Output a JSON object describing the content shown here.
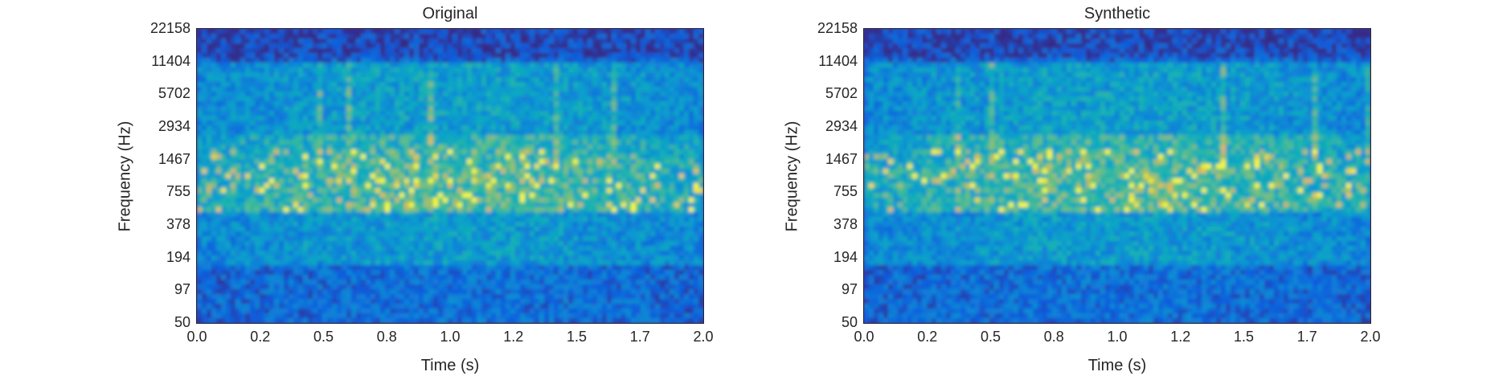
{
  "chart_data": [
    {
      "type": "heatmap",
      "title": "Original",
      "xlabel": "Time (s)",
      "ylabel": "Frequency (Hz)",
      "xticks": [
        "0.0",
        "0.2",
        "0.5",
        "0.8",
        "1.0",
        "1.2",
        "1.5",
        "1.7",
        "2.0"
      ],
      "yticks": [
        "22158",
        "11404",
        "5702",
        "2934",
        "1467",
        "755",
        "378",
        "194",
        "97",
        "50"
      ],
      "xlim": [
        0,
        2.0
      ],
      "ylim": [
        50,
        22158
      ],
      "yscale": "log",
      "colormap": "parula",
      "seed": 17
    },
    {
      "type": "heatmap",
      "title": "Synthetic",
      "xlabel": "Time (s)",
      "ylabel": "Frequency (Hz)",
      "xticks": [
        "0.0",
        "0.2",
        "0.5",
        "0.8",
        "1.0",
        "1.2",
        "1.5",
        "1.7",
        "2.0"
      ],
      "yticks": [
        "22158",
        "11404",
        "5702",
        "2934",
        "1467",
        "755",
        "378",
        "194",
        "97",
        "50"
      ],
      "xlim": [
        0,
        2.0
      ],
      "ylim": [
        50,
        22158
      ],
      "yscale": "log",
      "colormap": "parula",
      "seed": 41
    }
  ]
}
